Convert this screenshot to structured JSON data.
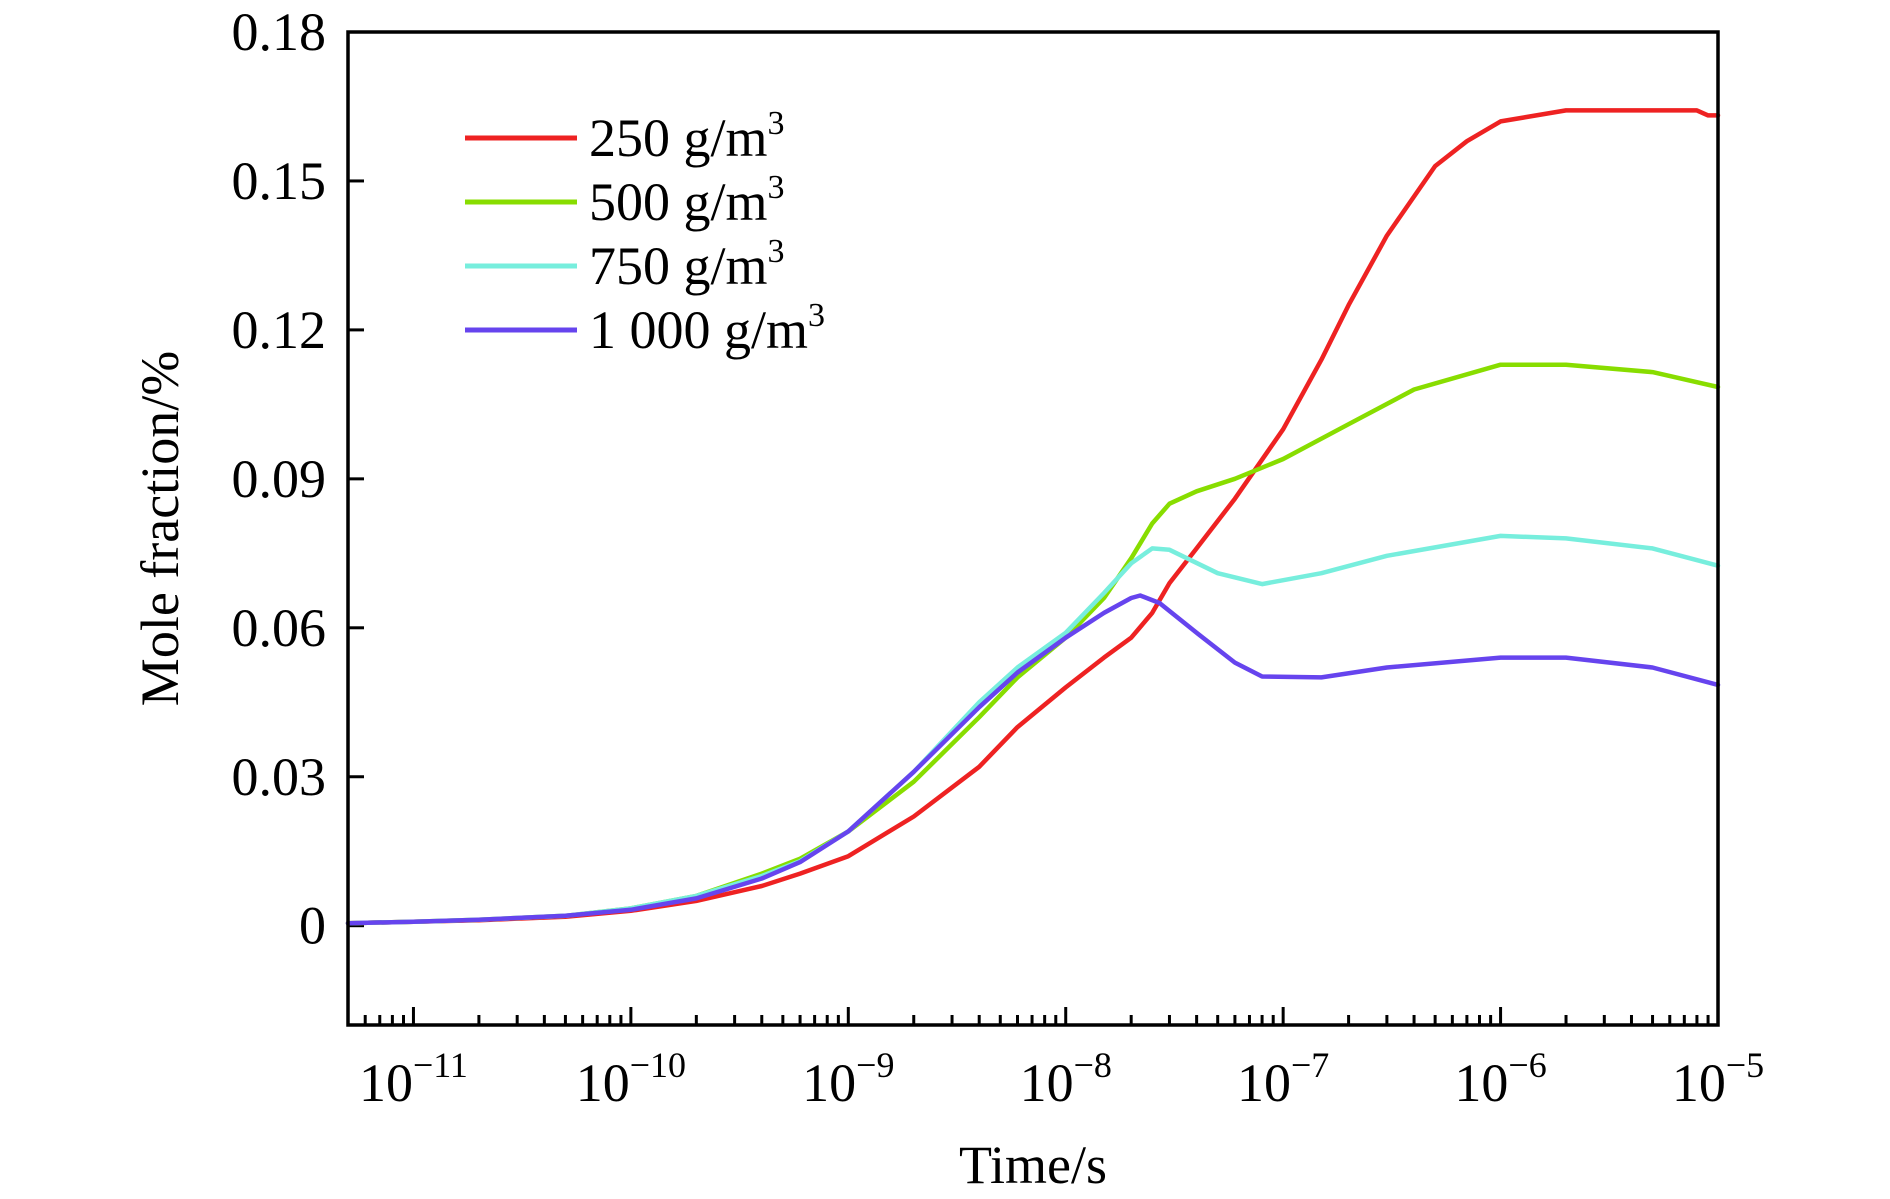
{
  "chart_data": {
    "type": "line",
    "xlabel": "Time/s",
    "ylabel": "Mole fraction/%",
    "xscale": "log",
    "xlim": [
      5e-12,
      1e-05
    ],
    "ylim": [
      -0.02,
      0.18
    ],
    "grid": false,
    "legend_position": "top-left",
    "y_ticks": [
      0,
      0.03,
      0.06,
      0.09,
      0.12,
      0.15,
      0.18
    ],
    "y_tick_labels": [
      "0",
      "0.03",
      "0.06",
      "0.09",
      "0.12",
      "0.15",
      "0.18"
    ],
    "x_ticks": [
      1e-11,
      1e-10,
      1e-09,
      1e-08,
      1e-07,
      1e-06,
      1e-05
    ],
    "x_tick_labels": [
      {
        "base": "10",
        "exp": "−11"
      },
      {
        "base": "10",
        "exp": "−10"
      },
      {
        "base": "10",
        "exp": "−9"
      },
      {
        "base": "10",
        "exp": "−8"
      },
      {
        "base": "10",
        "exp": "−7"
      },
      {
        "base": "10",
        "exp": "−6"
      },
      {
        "base": "10",
        "exp": "−5"
      }
    ],
    "series": [
      {
        "name": "250 g/m",
        "name_sup": "3",
        "color": "#ee2222",
        "points": [
          [
            5e-12,
            0.0005
          ],
          [
            1e-11,
            0.0008
          ],
          [
            2e-11,
            0.0011
          ],
          [
            5e-11,
            0.0018
          ],
          [
            1e-10,
            0.003
          ],
          [
            2e-10,
            0.005
          ],
          [
            4e-10,
            0.008
          ],
          [
            6e-10,
            0.0105
          ],
          [
            1e-09,
            0.014
          ],
          [
            2e-09,
            0.022
          ],
          [
            4e-09,
            0.032
          ],
          [
            6e-09,
            0.04
          ],
          [
            1e-08,
            0.048
          ],
          [
            1.5e-08,
            0.054
          ],
          [
            2e-08,
            0.058
          ],
          [
            2.5e-08,
            0.063
          ],
          [
            3e-08,
            0.069
          ],
          [
            4e-08,
            0.076
          ],
          [
            6e-08,
            0.086
          ],
          [
            1e-07,
            0.1
          ],
          [
            1.5e-07,
            0.114
          ],
          [
            2e-07,
            0.125
          ],
          [
            3e-07,
            0.139
          ],
          [
            5e-07,
            0.153
          ],
          [
            7e-07,
            0.158
          ],
          [
            1e-06,
            0.162
          ],
          [
            2e-06,
            0.1642
          ],
          [
            5e-06,
            0.1642
          ],
          [
            8e-06,
            0.1642
          ],
          [
            9e-06,
            0.1632
          ],
          [
            1e-05,
            0.1632
          ]
        ]
      },
      {
        "name": "500 g/m",
        "name_sup": "3",
        "color": "#88dd00",
        "points": [
          [
            5e-12,
            0.0005
          ],
          [
            1e-11,
            0.0008
          ],
          [
            2e-11,
            0.0012
          ],
          [
            5e-11,
            0.002
          ],
          [
            1e-10,
            0.0035
          ],
          [
            2e-10,
            0.006
          ],
          [
            4e-10,
            0.0105
          ],
          [
            6e-10,
            0.0135
          ],
          [
            1e-09,
            0.019
          ],
          [
            2e-09,
            0.029
          ],
          [
            4e-09,
            0.042
          ],
          [
            6e-09,
            0.05
          ],
          [
            1e-08,
            0.058
          ],
          [
            1.5e-08,
            0.066
          ],
          [
            2e-08,
            0.074
          ],
          [
            2.5e-08,
            0.081
          ],
          [
            3e-08,
            0.085
          ],
          [
            4e-08,
            0.0875
          ],
          [
            6e-08,
            0.09
          ],
          [
            1e-07,
            0.094
          ],
          [
            2e-07,
            0.101
          ],
          [
            4e-07,
            0.108
          ],
          [
            1e-06,
            0.113
          ],
          [
            2e-06,
            0.113
          ],
          [
            5e-06,
            0.1115
          ],
          [
            1e-05,
            0.1085
          ]
        ]
      },
      {
        "name": "750 g/m",
        "name_sup": "3",
        "color": "#77eedd",
        "points": [
          [
            5e-12,
            0.0005
          ],
          [
            1e-11,
            0.0008
          ],
          [
            2e-11,
            0.0012
          ],
          [
            5e-11,
            0.002
          ],
          [
            1e-10,
            0.0035
          ],
          [
            2e-10,
            0.006
          ],
          [
            4e-10,
            0.01
          ],
          [
            6e-10,
            0.013
          ],
          [
            1e-09,
            0.019
          ],
          [
            2e-09,
            0.031
          ],
          [
            4e-09,
            0.045
          ],
          [
            6e-09,
            0.052
          ],
          [
            1e-08,
            0.059
          ],
          [
            1.5e-08,
            0.067
          ],
          [
            2e-08,
            0.073
          ],
          [
            2.5e-08,
            0.076
          ],
          [
            3e-08,
            0.0757
          ],
          [
            5e-08,
            0.071
          ],
          [
            8e-08,
            0.0688
          ],
          [
            1.5e-07,
            0.071
          ],
          [
            3e-07,
            0.0745
          ],
          [
            1e-06,
            0.0785
          ],
          [
            2e-06,
            0.078
          ],
          [
            5e-06,
            0.076
          ],
          [
            1e-05,
            0.0725
          ]
        ]
      },
      {
        "name": "1 000 g/m",
        "name_sup": "3",
        "color": "#6644ee",
        "points": [
          [
            5e-12,
            0.0005
          ],
          [
            1e-11,
            0.0008
          ],
          [
            2e-11,
            0.0012
          ],
          [
            5e-11,
            0.002
          ],
          [
            1e-10,
            0.0032
          ],
          [
            2e-10,
            0.0055
          ],
          [
            4e-10,
            0.0095
          ],
          [
            6e-10,
            0.0128
          ],
          [
            1e-09,
            0.019
          ],
          [
            2e-09,
            0.031
          ],
          [
            4e-09,
            0.044
          ],
          [
            6e-09,
            0.051
          ],
          [
            1e-08,
            0.058
          ],
          [
            1.5e-08,
            0.063
          ],
          [
            2e-08,
            0.066
          ],
          [
            2.2e-08,
            0.0665
          ],
          [
            2.7e-08,
            0.065
          ],
          [
            4e-08,
            0.059
          ],
          [
            6e-08,
            0.053
          ],
          [
            8e-08,
            0.0502
          ],
          [
            1.5e-07,
            0.05
          ],
          [
            3e-07,
            0.052
          ],
          [
            1e-06,
            0.054
          ],
          [
            2e-06,
            0.054
          ],
          [
            5e-06,
            0.052
          ],
          [
            1e-05,
            0.0485
          ]
        ]
      }
    ]
  }
}
